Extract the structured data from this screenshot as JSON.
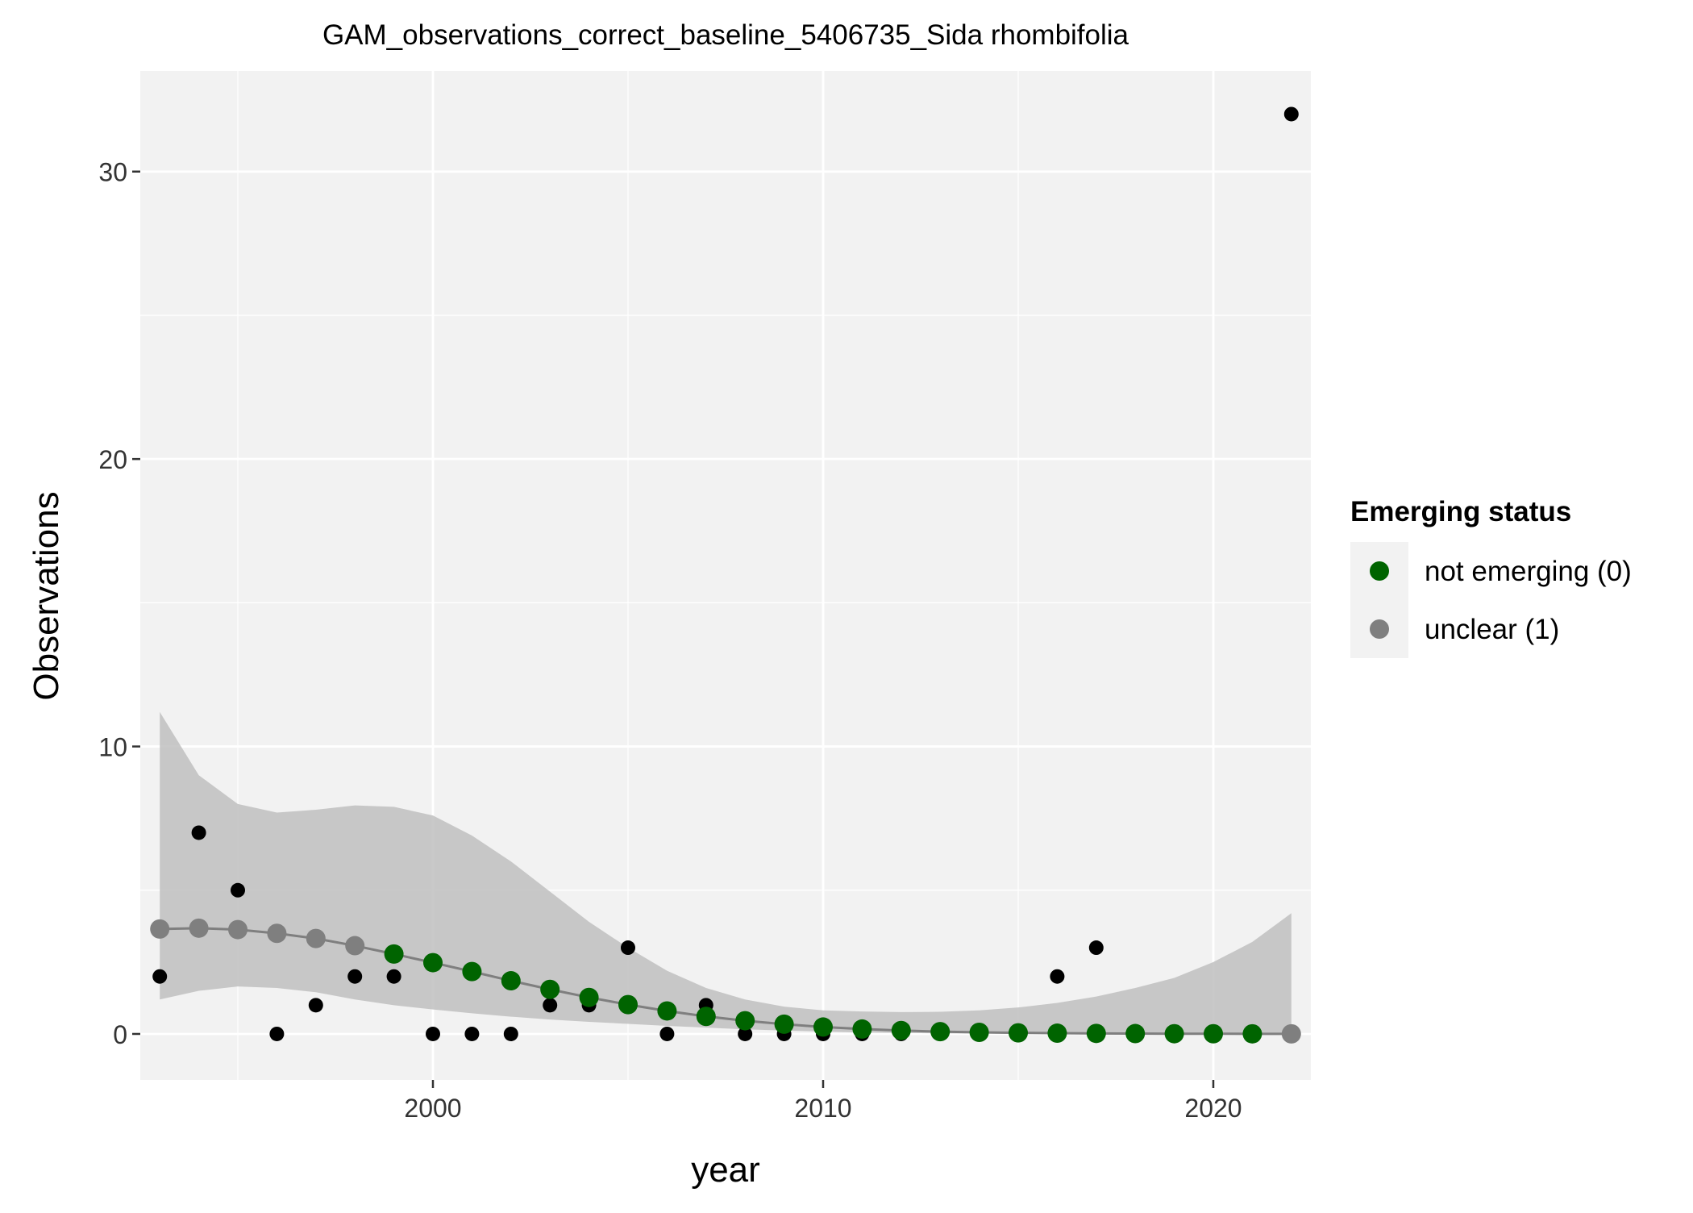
{
  "chart_data": {
    "type": "scatter",
    "title": "GAM_observations_correct_baseline_5406735_Sida rhombifolia",
    "xlabel": "year",
    "ylabel": "Observations",
    "xlim": [
      1992.5,
      2022.5
    ],
    "ylim": [
      -1.6,
      33.5
    ],
    "x_ticks": [
      2000,
      2010,
      2020
    ],
    "y_ticks": [
      0,
      10,
      20,
      30
    ],
    "grid": true,
    "legend": {
      "title": "Emerging status",
      "placement": "right",
      "entries": [
        {
          "label": "not emerging (0)",
          "color": "#006400"
        },
        {
          "label": "unclear (1)",
          "color": "#7f7f7f"
        }
      ]
    },
    "colors": {
      "observed": "#000000",
      "not_emerging": "#006400",
      "unclear": "#7f7f7f",
      "ribbon": "#bfbfbf",
      "panel": "#f2f2f2",
      "grid": "#ffffff",
      "fit_line": "#7f7f7f"
    },
    "observed": [
      {
        "x": 1993,
        "y": 2
      },
      {
        "x": 1994,
        "y": 7
      },
      {
        "x": 1995,
        "y": 5
      },
      {
        "x": 1996,
        "y": 0
      },
      {
        "x": 1997,
        "y": 1
      },
      {
        "x": 1998,
        "y": 2
      },
      {
        "x": 1999,
        "y": 2
      },
      {
        "x": 2000,
        "y": 0
      },
      {
        "x": 2001,
        "y": 0
      },
      {
        "x": 2002,
        "y": 0
      },
      {
        "x": 2003,
        "y": 1
      },
      {
        "x": 2004,
        "y": 1
      },
      {
        "x": 2005,
        "y": 3
      },
      {
        "x": 2006,
        "y": 0
      },
      {
        "x": 2007,
        "y": 1
      },
      {
        "x": 2008,
        "y": 0
      },
      {
        "x": 2009,
        "y": 0
      },
      {
        "x": 2010,
        "y": 0
      },
      {
        "x": 2011,
        "y": 0
      },
      {
        "x": 2012,
        "y": 0
      },
      {
        "x": 2016,
        "y": 2
      },
      {
        "x": 2017,
        "y": 3
      },
      {
        "x": 2022,
        "y": 32
      }
    ],
    "fit": [
      {
        "x": 1993,
        "y": 3.65,
        "lower": 1.2,
        "upper": 11.2,
        "status": "unclear"
      },
      {
        "x": 1994,
        "y": 3.68,
        "lower": 1.5,
        "upper": 9.0,
        "status": "unclear"
      },
      {
        "x": 1995,
        "y": 3.63,
        "lower": 1.65,
        "upper": 8.0,
        "status": "unclear"
      },
      {
        "x": 1996,
        "y": 3.5,
        "lower": 1.6,
        "upper": 7.7,
        "status": "unclear"
      },
      {
        "x": 1997,
        "y": 3.32,
        "lower": 1.45,
        "upper": 7.8,
        "status": "unclear"
      },
      {
        "x": 1998,
        "y": 3.07,
        "lower": 1.2,
        "upper": 7.95,
        "status": "unclear"
      },
      {
        "x": 1999,
        "y": 2.78,
        "lower": 1.0,
        "upper": 7.9,
        "status": "not_emerging"
      },
      {
        "x": 2000,
        "y": 2.48,
        "lower": 0.85,
        "upper": 7.6,
        "status": "not_emerging"
      },
      {
        "x": 2001,
        "y": 2.17,
        "lower": 0.72,
        "upper": 6.9,
        "status": "not_emerging"
      },
      {
        "x": 2002,
        "y": 1.85,
        "lower": 0.6,
        "upper": 6.0,
        "status": "not_emerging"
      },
      {
        "x": 2003,
        "y": 1.55,
        "lower": 0.5,
        "upper": 4.95,
        "status": "not_emerging"
      },
      {
        "x": 2004,
        "y": 1.27,
        "lower": 0.42,
        "upper": 3.9,
        "status": "not_emerging"
      },
      {
        "x": 2005,
        "y": 1.02,
        "lower": 0.35,
        "upper": 3.0,
        "status": "not_emerging"
      },
      {
        "x": 2006,
        "y": 0.8,
        "lower": 0.28,
        "upper": 2.2,
        "status": "not_emerging"
      },
      {
        "x": 2007,
        "y": 0.61,
        "lower": 0.22,
        "upper": 1.6,
        "status": "not_emerging"
      },
      {
        "x": 2008,
        "y": 0.46,
        "lower": 0.16,
        "upper": 1.2,
        "status": "not_emerging"
      },
      {
        "x": 2009,
        "y": 0.34,
        "lower": 0.12,
        "upper": 0.95,
        "status": "not_emerging"
      },
      {
        "x": 2010,
        "y": 0.24,
        "lower": 0.08,
        "upper": 0.82,
        "status": "not_emerging"
      },
      {
        "x": 2011,
        "y": 0.17,
        "lower": 0.05,
        "upper": 0.78,
        "status": "not_emerging"
      },
      {
        "x": 2012,
        "y": 0.12,
        "lower": 0.035,
        "upper": 0.76,
        "status": "not_emerging"
      },
      {
        "x": 2013,
        "y": 0.08,
        "lower": 0.02,
        "upper": 0.77,
        "status": "not_emerging"
      },
      {
        "x": 2014,
        "y": 0.055,
        "lower": 0.012,
        "upper": 0.82,
        "status": "not_emerging"
      },
      {
        "x": 2015,
        "y": 0.038,
        "lower": 0.007,
        "upper": 0.92,
        "status": "not_emerging"
      },
      {
        "x": 2016,
        "y": 0.026,
        "lower": 0.004,
        "upper": 1.08,
        "status": "not_emerging"
      },
      {
        "x": 2017,
        "y": 0.018,
        "lower": 0.002,
        "upper": 1.3,
        "status": "not_emerging"
      },
      {
        "x": 2018,
        "y": 0.012,
        "lower": 0.001,
        "upper": 1.6,
        "status": "not_emerging"
      },
      {
        "x": 2019,
        "y": 0.008,
        "lower": 0.0005,
        "upper": 1.95,
        "status": "not_emerging"
      },
      {
        "x": 2020,
        "y": 0.006,
        "lower": 0.0002,
        "upper": 2.5,
        "status": "not_emerging"
      },
      {
        "x": 2021,
        "y": 0.004,
        "lower": 0.0001,
        "upper": 3.2,
        "status": "not_emerging"
      },
      {
        "x": 2022,
        "y": 0.003,
        "lower": 0.0,
        "upper": 4.2,
        "status": "unclear"
      }
    ]
  }
}
